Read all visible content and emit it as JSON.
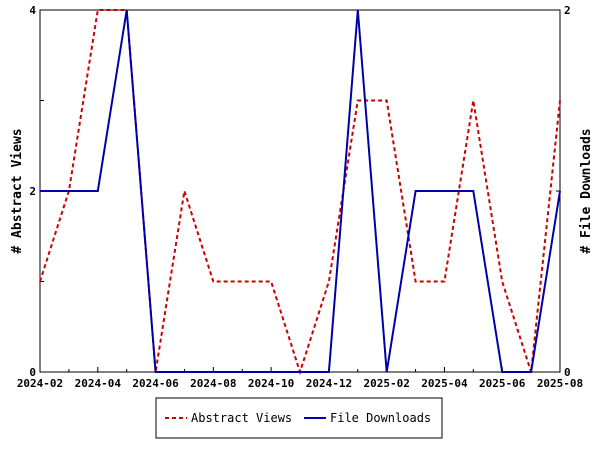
{
  "chart_data": {
    "type": "line",
    "x": [
      "2024-02",
      "2024-03",
      "2024-04",
      "2024-05",
      "2024-06",
      "2024-07",
      "2024-08",
      "2024-09",
      "2024-10",
      "2024-11",
      "2024-12",
      "2025-01",
      "2025-02",
      "2025-03",
      "2025-04",
      "2025-05",
      "2025-06",
      "2025-07",
      "2025-08"
    ],
    "x_ticks": [
      "2024-02",
      "2024-04",
      "2024-06",
      "2024-08",
      "2024-10",
      "2024-12",
      "2025-02",
      "2025-04",
      "2025-06",
      "2025-08"
    ],
    "series": [
      {
        "name": "Abstract Views",
        "axis": "left",
        "color": "#cc0000",
        "style": "dashed",
        "values": [
          1,
          2,
          4,
          4,
          0,
          2,
          1,
          1,
          1,
          0,
          1,
          3,
          3,
          1,
          1,
          3,
          1,
          0,
          3
        ]
      },
      {
        "name": "File Downloads",
        "axis": "right",
        "color": "#0000aa",
        "style": "solid",
        "values": [
          1,
          1,
          1,
          2,
          0,
          0,
          0,
          0,
          0,
          0,
          0,
          2,
          0,
          1,
          1,
          1,
          0,
          0,
          1
        ]
      }
    ],
    "ylabel_left": "# Abstract Views",
    "ylabel_right": "# File Downloads",
    "ylim_left": [
      0,
      4
    ],
    "ylim_right": [
      0,
      2
    ],
    "yticks_left": [
      "0",
      "2",
      "4"
    ],
    "yticks_right": [
      "0",
      "1",
      "2"
    ],
    "legend_position": "bottom-center",
    "grid": false
  }
}
